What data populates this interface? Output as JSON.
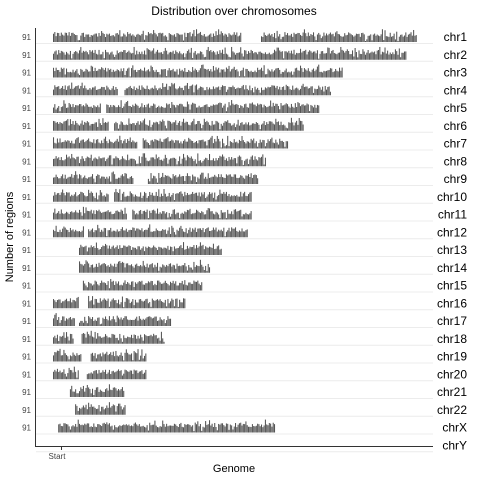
{
  "chart_data": {
    "type": "bar",
    "title": "Distribution over chromosomes",
    "xlabel": "Genome",
    "ylabel": "Number of regions",
    "x_tick_labels": [
      "Start"
    ],
    "y_tick_label": "91",
    "bar_color": "#555555",
    "panels": [
      {
        "name": "chr1",
        "extent": 1.0,
        "gaps": [
          [
            0.516,
            0.57
          ]
        ]
      },
      {
        "name": "chr2",
        "extent": 0.97,
        "gaps": []
      },
      {
        "name": "chr3",
        "extent": 0.795,
        "gaps": []
      },
      {
        "name": "chr4",
        "extent": 0.765,
        "gaps": [
          [
            0.175,
            0.195
          ]
        ]
      },
      {
        "name": "chr5",
        "extent": 0.73,
        "gaps": [
          [
            0.13,
            0.145
          ]
        ]
      },
      {
        "name": "chr6",
        "extent": 0.69,
        "gaps": [
          [
            0.15,
            0.165
          ]
        ]
      },
      {
        "name": "chr7",
        "extent": 0.645,
        "gaps": [
          [
            0.23,
            0.245
          ]
        ]
      },
      {
        "name": "chr8",
        "extent": 0.585,
        "gaps": []
      },
      {
        "name": "chr9",
        "extent": 0.565,
        "gaps": [
          [
            0.22,
            0.26
          ]
        ]
      },
      {
        "name": "chr10",
        "extent": 0.545,
        "gaps": [
          [
            0.15,
            0.165
          ]
        ]
      },
      {
        "name": "chr11",
        "extent": 0.545,
        "gaps": [
          [
            0.2,
            0.215
          ]
        ]
      },
      {
        "name": "chr12",
        "extent": 0.535,
        "gaps": [
          [
            0.085,
            0.095
          ]
        ]
      },
      {
        "name": "chr13",
        "extent": 0.465,
        "gaps": [
          [
            0.0,
            0.07
          ]
        ]
      },
      {
        "name": "chr14",
        "extent": 0.43,
        "gaps": [
          [
            0.0,
            0.07
          ]
        ]
      },
      {
        "name": "chr15",
        "extent": 0.41,
        "gaps": [
          [
            0.0,
            0.08
          ]
        ]
      },
      {
        "name": "chr16",
        "extent": 0.365,
        "gaps": [
          [
            0.07,
            0.095
          ]
        ]
      },
      {
        "name": "chr17",
        "extent": 0.325,
        "gaps": [
          [
            0.06,
            0.07
          ]
        ]
      },
      {
        "name": "chr18",
        "extent": 0.305,
        "gaps": [
          [
            0.055,
            0.075
          ]
        ]
      },
      {
        "name": "chr19",
        "extent": 0.255,
        "gaps": [
          [
            0.075,
            0.1
          ]
        ]
      },
      {
        "name": "chr20",
        "extent": 0.255,
        "gaps": [
          [
            0.07,
            0.09
          ]
        ]
      },
      {
        "name": "chr21",
        "extent": 0.195,
        "gaps": [
          [
            0.0,
            0.045
          ]
        ]
      },
      {
        "name": "chr22",
        "extent": 0.2,
        "gaps": [
          [
            0.0,
            0.06
          ]
        ]
      },
      {
        "name": "chrX",
        "extent": 0.61,
        "gaps": [
          [
            0.0,
            0.012
          ]
        ]
      },
      {
        "name": "chrY",
        "extent": 0.0,
        "gaps": []
      }
    ]
  }
}
